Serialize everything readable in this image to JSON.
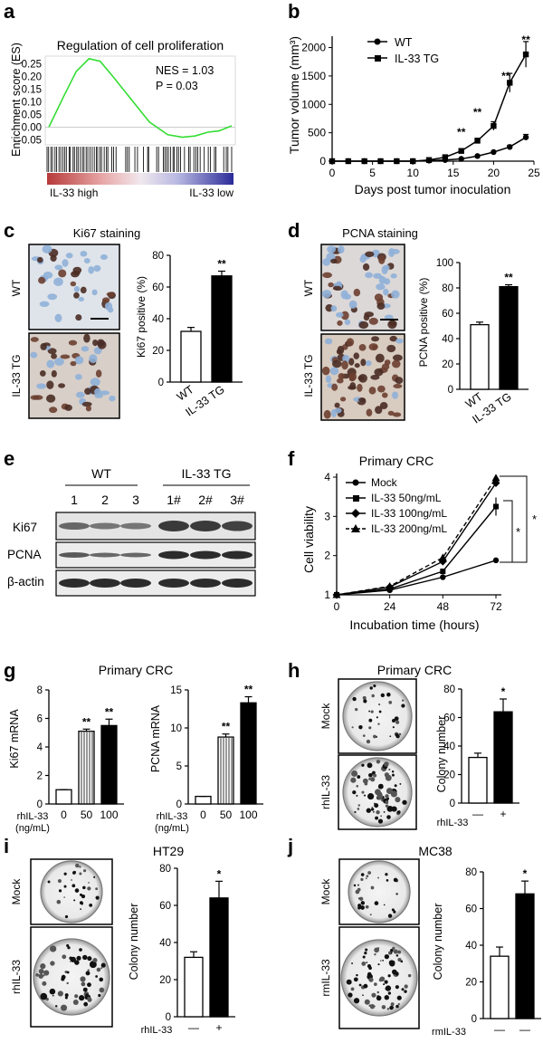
{
  "colors": {
    "ink": "#000000",
    "gsea_line": "#33dd33",
    "bar_fill_dark": "#000000",
    "bar_fill_light": "#ffffff",
    "heat_red": "#b73a3a",
    "heat_blue": "#3a3aa6",
    "ki67_pink": "#c9a3a0",
    "ihc_bg": "#dfe4ea"
  },
  "panel_letters": [
    "a",
    "b",
    "c",
    "d",
    "e",
    "f",
    "g",
    "h",
    "i",
    "j"
  ],
  "chart_data": [
    {
      "id": "a",
      "type": "line",
      "title": "Regulation of cell proliferation",
      "ylabel": "Enrichment score (ES)",
      "yticks": [
        "0.25",
        "0.20",
        "0.15",
        "0.10",
        "0.05",
        "0.00",
        "-0.05"
      ],
      "ylim": [
        -0.07,
        0.28
      ],
      "nes_text": "NES = 1.03",
      "p_text": "P = 0.03",
      "x": [
        0,
        0.08,
        0.15,
        0.22,
        0.28,
        0.35,
        0.45,
        0.55,
        0.65,
        0.73,
        0.8,
        0.87,
        0.93,
        1.0
      ],
      "y": [
        0.0,
        0.12,
        0.22,
        0.27,
        0.26,
        0.2,
        0.11,
        0.02,
        -0.03,
        -0.04,
        -0.035,
        -0.02,
        -0.015,
        0.005
      ],
      "heatmap_left_label": "IL-33 high",
      "heatmap_right_label": "IL-33   low"
    },
    {
      "id": "b",
      "type": "line",
      "xlabel": "Days post tumor inoculation",
      "ylabel": "Tumor volume (mm³)",
      "xticks": [
        "0",
        "5",
        "10",
        "15",
        "20",
        "25"
      ],
      "yticks": [
        "0",
        "500",
        "1000",
        "1500",
        "2000"
      ],
      "xlim": [
        0,
        25
      ],
      "ylim": [
        0,
        2200
      ],
      "x": [
        0,
        2,
        4,
        6,
        8,
        10,
        12,
        14,
        16,
        18,
        20,
        22,
        24
      ],
      "series": [
        {
          "name": "WT",
          "values": [
            0,
            0,
            0,
            0,
            0,
            0,
            10,
            20,
            40,
            90,
            160,
            250,
            420
          ]
        },
        {
          "name": "IL-33 TG",
          "values": [
            0,
            0,
            0,
            0,
            0,
            0,
            20,
            70,
            180,
            360,
            620,
            1380,
            1880
          ]
        }
      ],
      "significance": [
        {
          "x": 16,
          "label": "**"
        },
        {
          "x": 18,
          "label": "**"
        },
        {
          "x": 21.5,
          "label": "**"
        },
        {
          "x": 24,
          "label": "**"
        }
      ]
    },
    {
      "id": "c",
      "type": "bar",
      "title": "Ki67 staining",
      "ylabel": "Ki67 positive (%)",
      "categories": [
        "WT",
        "IL-33 TG"
      ],
      "values": [
        32,
        67
      ],
      "ylim": [
        0,
        80
      ],
      "yticks": [
        "0",
        "20",
        "40",
        "60",
        "80"
      ],
      "significance": "**",
      "image_labels": [
        "WT",
        "IL-33 TG"
      ]
    },
    {
      "id": "d",
      "type": "bar",
      "title": "PCNA   staining",
      "ylabel": "PCNA positive (%)",
      "categories": [
        "WT",
        "IL-33 TG"
      ],
      "values": [
        51,
        81
      ],
      "ylim": [
        0,
        100
      ],
      "yticks": [
        "0",
        "20",
        "40",
        "60",
        "80",
        "100"
      ],
      "significance": "**",
      "image_labels": [
        "WT",
        "IL-33 TG"
      ]
    },
    {
      "id": "f",
      "type": "line",
      "title": "Primary CRC",
      "xlabel": "Incubation time (hours)",
      "ylabel": "Cell viability",
      "xticks": [
        "0",
        "24",
        "48",
        "72"
      ],
      "yticks": [
        "1",
        "2",
        "3",
        "4"
      ],
      "xlim": [
        0,
        72
      ],
      "ylim": [
        1,
        4
      ],
      "x": [
        0,
        24,
        48,
        72
      ],
      "series": [
        {
          "name": "Mock",
          "values": [
            1.0,
            1.12,
            1.45,
            1.88
          ]
        },
        {
          "name": "IL-33   50ng/mL",
          "values": [
            1.0,
            1.15,
            1.6,
            3.25
          ]
        },
        {
          "name": "IL-33   100ng/mL",
          "values": [
            1.0,
            1.2,
            1.85,
            3.85
          ]
        },
        {
          "name": "IL-33   200ng/mL",
          "values": [
            1.0,
            1.22,
            1.95,
            3.98
          ]
        }
      ],
      "significance": [
        "*",
        "*"
      ]
    },
    {
      "id": "g1",
      "type": "bar",
      "title": "Primary CRC",
      "ylabel": "Ki67 mRNA",
      "categories": [
        "0",
        "50",
        "100"
      ],
      "values": [
        1.0,
        5.1,
        5.5
      ],
      "ylim": [
        0,
        8
      ],
      "yticks": [
        "0",
        "2",
        "4",
        "6",
        "8"
      ],
      "significance": [
        "",
        "**",
        "**"
      ],
      "axis_label_1": "rhIL-33",
      "axis_label_2": "(ng/mL)"
    },
    {
      "id": "g2",
      "type": "bar",
      "ylabel": "PCNA mRNA",
      "categories": [
        "0",
        "50",
        "100"
      ],
      "values": [
        1.0,
        8.8,
        13.3
      ],
      "ylim": [
        0,
        15
      ],
      "yticks": [
        "0",
        "5",
        "10",
        "15"
      ],
      "significance": [
        "",
        "**",
        "**"
      ],
      "axis_label_1": "rhIL-33",
      "axis_label_2": "(ng/mL)"
    },
    {
      "id": "h",
      "type": "bar",
      "title": "Primary CRC",
      "ylabel": "Colony number",
      "categories": [
        "—",
        "+"
      ],
      "values": [
        32,
        64
      ],
      "ylim": [
        0,
        80
      ],
      "yticks": [
        "0",
        "20",
        "40",
        "60",
        "80"
      ],
      "significance": "*",
      "treatment_label": "rhIL-33",
      "image_labels": [
        "Mock",
        "rhIL-33"
      ]
    },
    {
      "id": "i",
      "type": "bar",
      "title": "HT29",
      "ylabel": "Colony number",
      "categories": [
        "—",
        "+"
      ],
      "values": [
        32,
        64
      ],
      "ylim": [
        0,
        80
      ],
      "yticks": [
        "0",
        "20",
        "40",
        "60",
        "80"
      ],
      "significance": "*",
      "treatment_label": "rhIL-33",
      "image_labels": [
        "Mock",
        "rhIL-33"
      ]
    },
    {
      "id": "j",
      "type": "bar",
      "title": "MC38",
      "ylabel": "Colony number",
      "categories": [
        "—",
        "—"
      ],
      "values": [
        34,
        68
      ],
      "ylim": [
        0,
        80
      ],
      "yticks": [
        "0",
        "20",
        "40",
        "60",
        "80"
      ],
      "significance": "*",
      "treatment_label": "rmIL-33",
      "image_labels": [
        "Mock",
        "rmIL-33"
      ]
    }
  ],
  "western": {
    "group_labels": [
      "WT",
      "IL-33 TG"
    ],
    "lane_labels": [
      "1",
      "2",
      "3",
      "1#",
      "2#",
      "3#"
    ],
    "row_labels": [
      "Ki67",
      "PCNA",
      "β-actin"
    ]
  }
}
